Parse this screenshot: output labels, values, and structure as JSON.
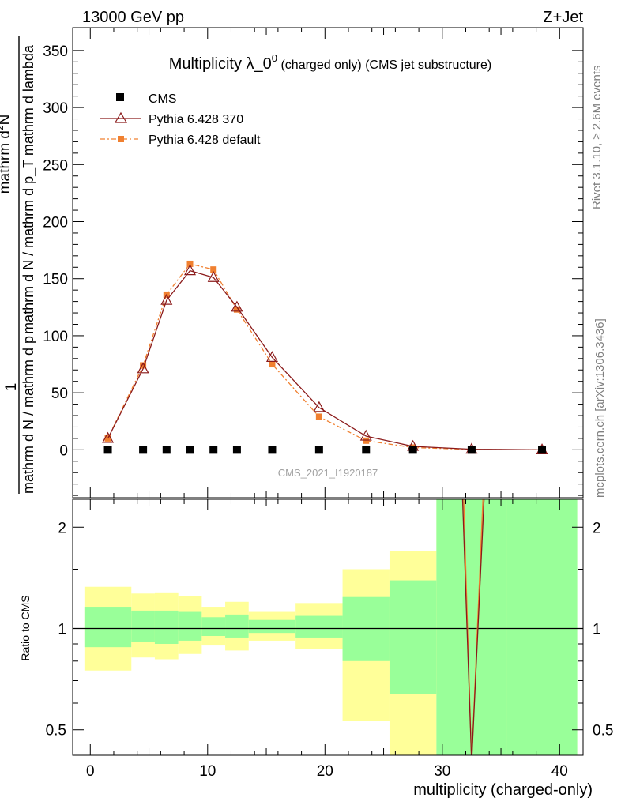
{
  "header": {
    "energy": "13000 GeV pp",
    "process": "Z+Jet"
  },
  "side_labels": {
    "rivet": "Rivet 3.1.10, ≥ 2.6M events",
    "source": "mcplots.cern.ch [arXiv:1306.3436]"
  },
  "colors": {
    "cms": "#000000",
    "p370": "#8b1a1a",
    "pdefault": "#f08030",
    "band_inner": "#99ff99",
    "band_outer": "#ffff99"
  },
  "chart_data": [
    {
      "id": "main",
      "type": "line",
      "title": "Multiplicity λ_0",
      "title_sup": "0",
      "title_mid": " (charged only)",
      "title_tail": " (CMS jet substructure)",
      "ylabel": "mathrm d N / mathrm d p_T mathrm d lambda",
      "ylabel_prefactor": "1",
      "ylabel_prefactor_sub": "mathrm d N / mathrm d p",
      "ylabel_numerator": "mathrm d",
      "ylabel_numerator_sup": "2",
      "ylabel_numerator_tail": "N",
      "xlim": [
        -1.5,
        42
      ],
      "ylim": [
        -42,
        370
      ],
      "yticks": [
        0,
        50,
        100,
        150,
        200,
        250,
        300,
        350
      ],
      "ytick_labels": [
        "0",
        "50",
        "100",
        "150",
        "200",
        "250",
        "300",
        "350"
      ],
      "watermark": "CMS_2021_I1920187",
      "legend": [
        "CMS",
        "Pythia 6.428 370",
        "Pythia 6.428 default"
      ],
      "series": [
        {
          "name": "CMS",
          "style": "square",
          "x": [
            1.5,
            4.5,
            6.5,
            8.5,
            10.5,
            12.5,
            15.5,
            19.5,
            23.5,
            27.5,
            32.5,
            38.5
          ],
          "y": [
            0,
            0,
            0,
            0,
            0,
            0,
            0,
            0,
            0,
            0,
            0,
            0
          ]
        },
        {
          "name": "Pythia 6.428 370",
          "style": "triangle",
          "x": [
            1.5,
            4.5,
            6.5,
            8.5,
            10.5,
            12.5,
            15.5,
            19.5,
            23.5,
            27.5,
            32.5,
            38.5
          ],
          "y": [
            10,
            71,
            131,
            157,
            151,
            125,
            81,
            37,
            12,
            3,
            0.5,
            0
          ]
        },
        {
          "name": "Pythia 6.428 default",
          "style": "dot",
          "x": [
            1.5,
            4.5,
            6.5,
            8.5,
            10.5,
            12.5,
            15.5,
            19.5,
            23.5,
            27.5,
            32.5,
            38.5
          ],
          "y": [
            10,
            74,
            136,
            163,
            158,
            123,
            75,
            29,
            8,
            2,
            0.3,
            0
          ]
        }
      ]
    },
    {
      "id": "ratio",
      "type": "line",
      "ylabel": "Ratio to CMS",
      "xlabel": "multiplicity (charged-only)",
      "xlim": [
        -1.5,
        42
      ],
      "ylim": [
        0.42,
        2.42
      ],
      "yscale": "log",
      "xticks": [
        0,
        10,
        20,
        30,
        40
      ],
      "xtick_labels": [
        "0",
        "10",
        "20",
        "30",
        "40"
      ],
      "yticks": [
        0.5,
        1,
        2
      ],
      "ytick_labels": [
        "0.5",
        "1",
        "2"
      ],
      "bins": [
        {
          "lo": -0.5,
          "hi": 3.5,
          "inner": [
            0.88,
            1.16
          ],
          "outer": [
            0.75,
            1.33
          ]
        },
        {
          "lo": 3.5,
          "hi": 5.5,
          "inner": [
            0.91,
            1.13
          ],
          "outer": [
            0.82,
            1.27
          ]
        },
        {
          "lo": 5.5,
          "hi": 7.5,
          "inner": [
            0.9,
            1.13
          ],
          "outer": [
            0.81,
            1.28
          ]
        },
        {
          "lo": 7.5,
          "hi": 9.5,
          "inner": [
            0.92,
            1.12
          ],
          "outer": [
            0.84,
            1.25
          ]
        },
        {
          "lo": 9.5,
          "hi": 11.5,
          "inner": [
            0.95,
            1.08
          ],
          "outer": [
            0.89,
            1.16
          ]
        },
        {
          "lo": 11.5,
          "hi": 13.5,
          "inner": [
            0.94,
            1.1
          ],
          "outer": [
            0.86,
            1.2
          ]
        },
        {
          "lo": 13.5,
          "hi": 17.5,
          "inner": [
            0.97,
            1.06
          ],
          "outer": [
            0.92,
            1.12
          ]
        },
        {
          "lo": 17.5,
          "hi": 21.5,
          "inner": [
            0.94,
            1.09
          ],
          "outer": [
            0.87,
            1.19
          ]
        },
        {
          "lo": 21.5,
          "hi": 25.5,
          "inner": [
            0.8,
            1.24
          ],
          "outer": [
            0.53,
            1.5
          ]
        },
        {
          "lo": 25.5,
          "hi": 29.5,
          "inner": [
            0.64,
            1.39
          ],
          "outer": [
            0.4,
            1.7
          ]
        },
        {
          "lo": 29.5,
          "hi": 35.5,
          "inner": [
            0.4,
            2.6
          ],
          "outer": [
            0.4,
            2.6
          ]
        },
        {
          "lo": 35.5,
          "hi": 41.5,
          "inner": [
            0.4,
            2.6
          ],
          "outer": [
            0.4,
            2.6
          ]
        }
      ],
      "reference_line": 1,
      "series": [
        {
          "name": "Pythia 6.428 370",
          "x": [
            31.7,
            32.5,
            33.6
          ],
          "y": [
            2.6,
            0.4,
            2.6
          ]
        },
        {
          "name": "Pythia 6.428 default",
          "x": [
            31.8,
            32.5,
            33.5
          ],
          "y": [
            2.6,
            0.4,
            2.6
          ]
        }
      ]
    }
  ]
}
